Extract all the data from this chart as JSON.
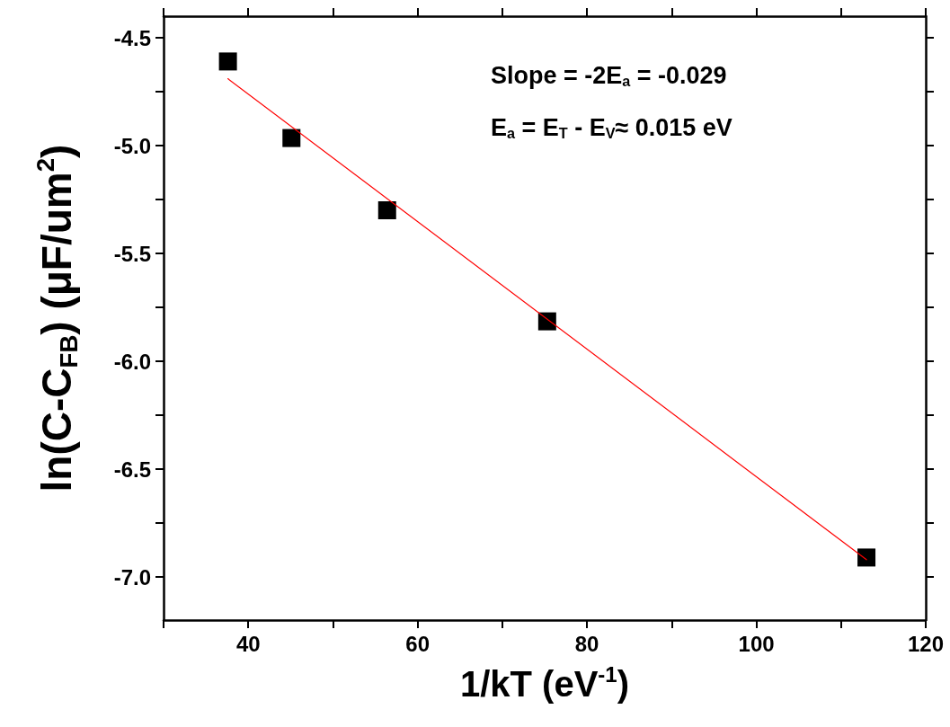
{
  "chart_data": {
    "type": "scatter",
    "xlabel": "1/kT (eV$^{-1}$)",
    "ylabel": "ln(C-C$_{FB}$) (μF/um$^{2}$)",
    "annotations": [
      "Slope = -2E$_{a}$ = -0.029",
      "E$_{a}$ = E$_{T}$ - E$_{V}$≈ 0.015 eV"
    ],
    "xlim": [
      30,
      120
    ],
    "xticks": [
      {
        "value": 30,
        "label": null
      },
      40,
      {
        "value": 50,
        "label": null
      },
      60,
      {
        "value": 70,
        "label": null
      },
      80,
      {
        "value": 90,
        "label": null
      },
      100,
      {
        "value": 110,
        "label": null
      },
      120
    ],
    "ylim": [
      -7.2,
      -4.4
    ],
    "yticks": [
      {
        "value": -4.5,
        "label": "-4.5"
      },
      {
        "value": -4.75,
        "label": null
      },
      {
        "value": -5,
        "label": "-5.0"
      },
      {
        "value": -5.25,
        "label": null
      },
      {
        "value": -5.5,
        "label": "-5.5"
      },
      {
        "value": -5.75,
        "label": null
      },
      {
        "value": -6,
        "label": "-6.0"
      },
      {
        "value": -6.25,
        "label": null
      },
      {
        "value": -6.5,
        "label": "-6.5"
      },
      {
        "value": -6.75,
        "label": null
      },
      {
        "value": -7,
        "label": "-7.0"
      }
    ],
    "grid": false,
    "series": [
      {
        "color": "#000000",
        "marker": "square",
        "x": [
          37.6,
          45.1,
          56.4,
          75.3,
          113.0
        ],
        "values": [
          -4.61,
          -4.965,
          -5.3,
          -5.815,
          -6.91
        ]
      },
      {
        "type": "line",
        "color": "#ff0000",
        "marker": "none",
        "line_style": "solid",
        "x": [
          37.6,
          113.0
        ],
        "values": [
          -4.69,
          -6.92
        ]
      }
    ]
  }
}
